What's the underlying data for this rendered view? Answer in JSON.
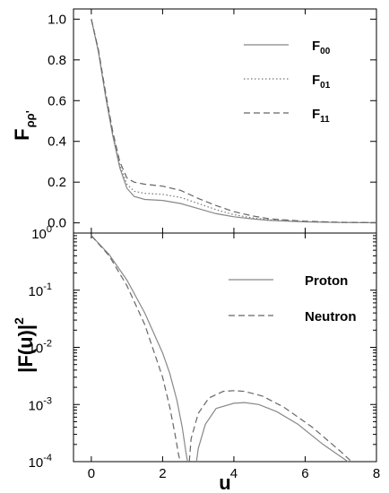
{
  "chart_data": [
    {
      "type": "line",
      "ylabel": "F",
      "ylabel_subscript": "ρρ'",
      "xlim": [
        -0.5,
        8
      ],
      "ylim": [
        -0.05,
        1.05
      ],
      "x_ticks": [
        0,
        2,
        4,
        6,
        8
      ],
      "y_ticks": [
        "0.0",
        "0.2",
        "0.4",
        "0.6",
        "0.8",
        "1.0"
      ],
      "y_tick_values": [
        0,
        0.2,
        0.4,
        0.6,
        0.8,
        1.0
      ],
      "legend_position": "top-right",
      "series": [
        {
          "name": "F",
          "subscript": "00",
          "style": "solid",
          "x": [
            0,
            0.2,
            0.4,
            0.6,
            0.8,
            1.0,
            1.2,
            1.5,
            2.0,
            2.5,
            3.0,
            3.5,
            4.0,
            4.5,
            5.0,
            6.0,
            7.0,
            8.0
          ],
          "y": [
            1.0,
            0.84,
            0.62,
            0.43,
            0.27,
            0.17,
            0.13,
            0.115,
            0.11,
            0.095,
            0.07,
            0.045,
            0.03,
            0.02,
            0.012,
            0.005,
            0.002,
            0.001
          ]
        },
        {
          "name": "F",
          "subscript": "01",
          "style": "dotted",
          "x": [
            0,
            0.2,
            0.4,
            0.6,
            0.8,
            1.0,
            1.2,
            1.5,
            2.0,
            2.5,
            3.0,
            3.5,
            4.0,
            4.5,
            5.0,
            6.0,
            7.0,
            8.0
          ],
          "y": [
            1.0,
            0.845,
            0.63,
            0.44,
            0.285,
            0.19,
            0.155,
            0.145,
            0.14,
            0.125,
            0.095,
            0.065,
            0.04,
            0.025,
            0.015,
            0.006,
            0.002,
            0.001
          ]
        },
        {
          "name": "F",
          "subscript": "11",
          "style": "dashed",
          "x": [
            0,
            0.2,
            0.4,
            0.6,
            0.8,
            1.0,
            1.2,
            1.5,
            2.0,
            2.5,
            3.0,
            3.5,
            4.0,
            4.5,
            5.0,
            6.0,
            7.0,
            8.0
          ],
          "y": [
            1.0,
            0.85,
            0.64,
            0.45,
            0.3,
            0.22,
            0.2,
            0.19,
            0.18,
            0.16,
            0.12,
            0.085,
            0.055,
            0.035,
            0.02,
            0.008,
            0.003,
            0.001
          ]
        }
      ]
    },
    {
      "type": "line",
      "ylabel": "|F(u)|",
      "ylabel_superscript": "2",
      "xlabel": "u",
      "xlim": [
        -0.5,
        8
      ],
      "ylim": [
        0.0001,
        1
      ],
      "yscale": "log",
      "x_ticks": [
        "0",
        "2",
        "4",
        "6",
        "8"
      ],
      "x_tick_values": [
        0,
        2,
        4,
        6,
        8
      ],
      "y_ticks": [
        {
          "base": "10",
          "exp": "0",
          "value": 1
        },
        {
          "base": "10",
          "exp": "-1",
          "value": 0.1
        },
        {
          "base": "10",
          "exp": "-2",
          "value": 0.01
        },
        {
          "base": "10",
          "exp": "-3",
          "value": 0.001
        },
        {
          "base": "10",
          "exp": "-4",
          "value": 0.0001
        }
      ],
      "legend_position": "top-right",
      "series": [
        {
          "name": "Proton",
          "style": "solid",
          "x": [
            0,
            0.5,
            1.0,
            1.5,
            2.0,
            2.2,
            2.4,
            2.55,
            2.65,
            2.7
          ],
          "y": [
            0.9,
            0.42,
            0.15,
            0.04,
            0.008,
            0.0035,
            0.0012,
            0.0004,
            0.00015,
            0.0001
          ],
          "x2": [
            2.95,
            3.0,
            3.2,
            3.5,
            4.0,
            4.3,
            4.7,
            5.2,
            5.8,
            6.5,
            7.2
          ],
          "y2": [
            0.0001,
            0.00017,
            0.00045,
            0.00085,
            0.00105,
            0.00108,
            0.001,
            0.00075,
            0.00045,
            0.0002,
            0.0001
          ]
        },
        {
          "name": "Neutron",
          "style": "dashed",
          "x": [
            0,
            0.5,
            1.0,
            1.5,
            2.0,
            2.2,
            2.35,
            2.45,
            2.5
          ],
          "y": [
            0.9,
            0.4,
            0.12,
            0.025,
            0.003,
            0.0009,
            0.0003,
            0.00013,
            0.0001
          ],
          "x2": [
            2.75,
            2.8,
            3.0,
            3.3,
            3.7,
            4.0,
            4.3,
            4.8,
            5.4,
            6.2,
            7.0,
            7.3
          ],
          "y2": [
            0.0001,
            0.00025,
            0.0007,
            0.0013,
            0.0017,
            0.00175,
            0.0017,
            0.0014,
            0.0009,
            0.0004,
            0.00015,
            0.0001
          ]
        }
      ]
    }
  ]
}
